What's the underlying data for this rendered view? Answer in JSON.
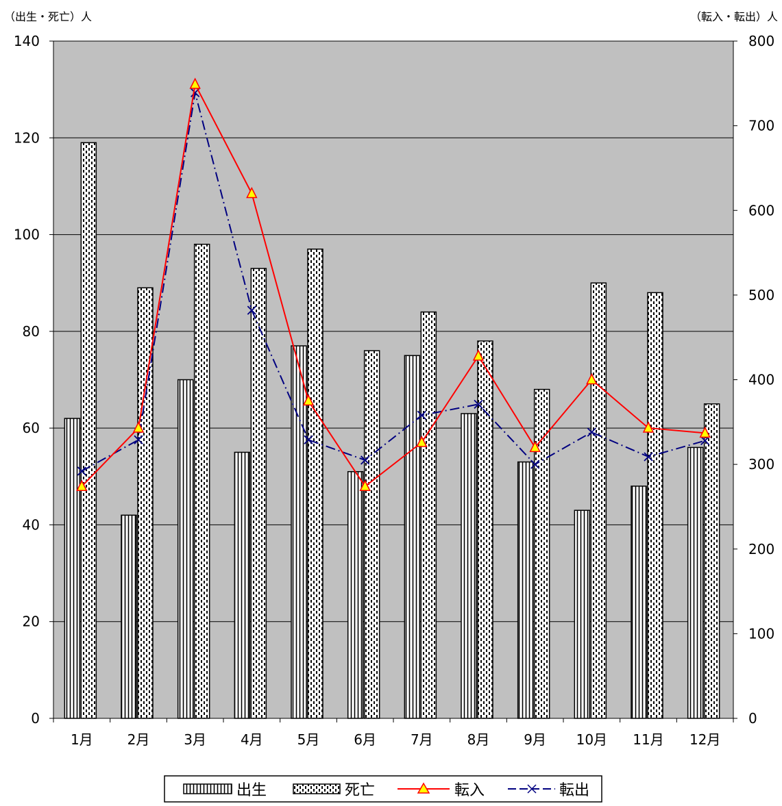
{
  "chart_data": {
    "type": "bar",
    "categories": [
      "1月",
      "2月",
      "3月",
      "4月",
      "5月",
      "6月",
      "7月",
      "8月",
      "9月",
      "10月",
      "11月",
      "12月"
    ],
    "left_axis": {
      "label": "（出生・死亡）人",
      "ylim": [
        0,
        140
      ],
      "ticks": [
        0,
        20,
        40,
        60,
        80,
        100,
        120,
        140
      ]
    },
    "right_axis": {
      "label": "（転入・転出）人",
      "ylim": [
        0,
        800
      ],
      "ticks": [
        0,
        100,
        200,
        300,
        400,
        500,
        600,
        700,
        800
      ]
    },
    "grid": true,
    "legend_position": "bottom",
    "series": [
      {
        "name": "出生",
        "type": "bar",
        "axis": "left",
        "pattern": "vertical-stripes",
        "values": [
          62,
          42,
          70,
          55,
          77,
          51,
          75,
          63,
          53,
          43,
          48,
          56
        ]
      },
      {
        "name": "死亡",
        "type": "bar",
        "axis": "left",
        "pattern": "dashed-stripes",
        "values": [
          119,
          89,
          98,
          93,
          97,
          76,
          84,
          78,
          68,
          90,
          88,
          65
        ]
      },
      {
        "name": "転入",
        "type": "line",
        "axis": "right",
        "color": "#ff0000",
        "marker": "triangle",
        "values": [
          274,
          343,
          749,
          620,
          375,
          274,
          326,
          428,
          320,
          400,
          343,
          337
        ]
      },
      {
        "name": "転出",
        "type": "line",
        "axis": "right",
        "color": "#000080",
        "marker": "x",
        "values": [
          292,
          329,
          739,
          482,
          329,
          305,
          358,
          371,
          300,
          338,
          309,
          328
        ]
      }
    ],
    "colors": {
      "plot_bg": "#c0c0c0",
      "line_in": "#ff0000",
      "marker_in_fill": "#ffff00",
      "line_out": "#000080"
    }
  }
}
